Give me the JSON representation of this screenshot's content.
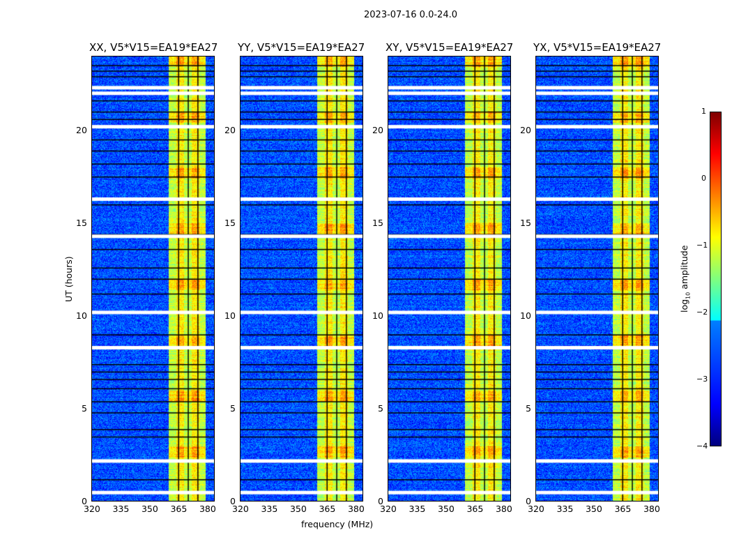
{
  "chart_data": {
    "type": "heatmap",
    "title": "2023-07-16 0.0-24.0",
    "xlabel": "frequency (MHz)",
    "ylabel": "UT (hours)",
    "xlim": [
      320,
      384
    ],
    "ylim": [
      0,
      24
    ],
    "xticks": [
      "320",
      "335",
      "350",
      "365",
      "380"
    ],
    "yticks": [
      "0",
      "5",
      "10",
      "15",
      "20"
    ],
    "panels": [
      {
        "title": "XX, V5*V15=EA19*EA27"
      },
      {
        "title": "YY, V5*V15=EA19*EA27"
      },
      {
        "title": "XY, V5*V15=EA19*EA27"
      },
      {
        "title": "YX, V5*V15=EA19*EA27"
      }
    ],
    "signal_band_mhz": [
      360,
      379
    ],
    "background_log_amplitude": -3,
    "band_log_amplitude": -1,
    "flagged_hours_white": [
      0.5,
      2.2,
      8.3,
      10.2,
      14.3,
      16.3,
      20.2,
      22.3,
      22.0
    ],
    "flagged_hours_black": [
      1.2,
      3.5,
      3.9,
      4.8,
      5.4,
      6.1,
      6.6,
      7.0,
      7.4,
      9.0,
      11.2,
      12.0,
      12.6,
      13.6,
      14.4,
      16.0,
      17.5,
      18.2,
      18.9,
      19.5,
      20.6,
      21.0,
      21.6,
      22.9,
      23.2,
      23.5
    ],
    "colorbar": {
      "label": "log10 amplitude",
      "label_main": "log",
      "label_sub": "10",
      "label_rest": " amplitude",
      "range": [
        -4,
        1
      ],
      "ticks": [
        "1",
        "0",
        "−1",
        "−2",
        "−3",
        "−4"
      ]
    }
  }
}
